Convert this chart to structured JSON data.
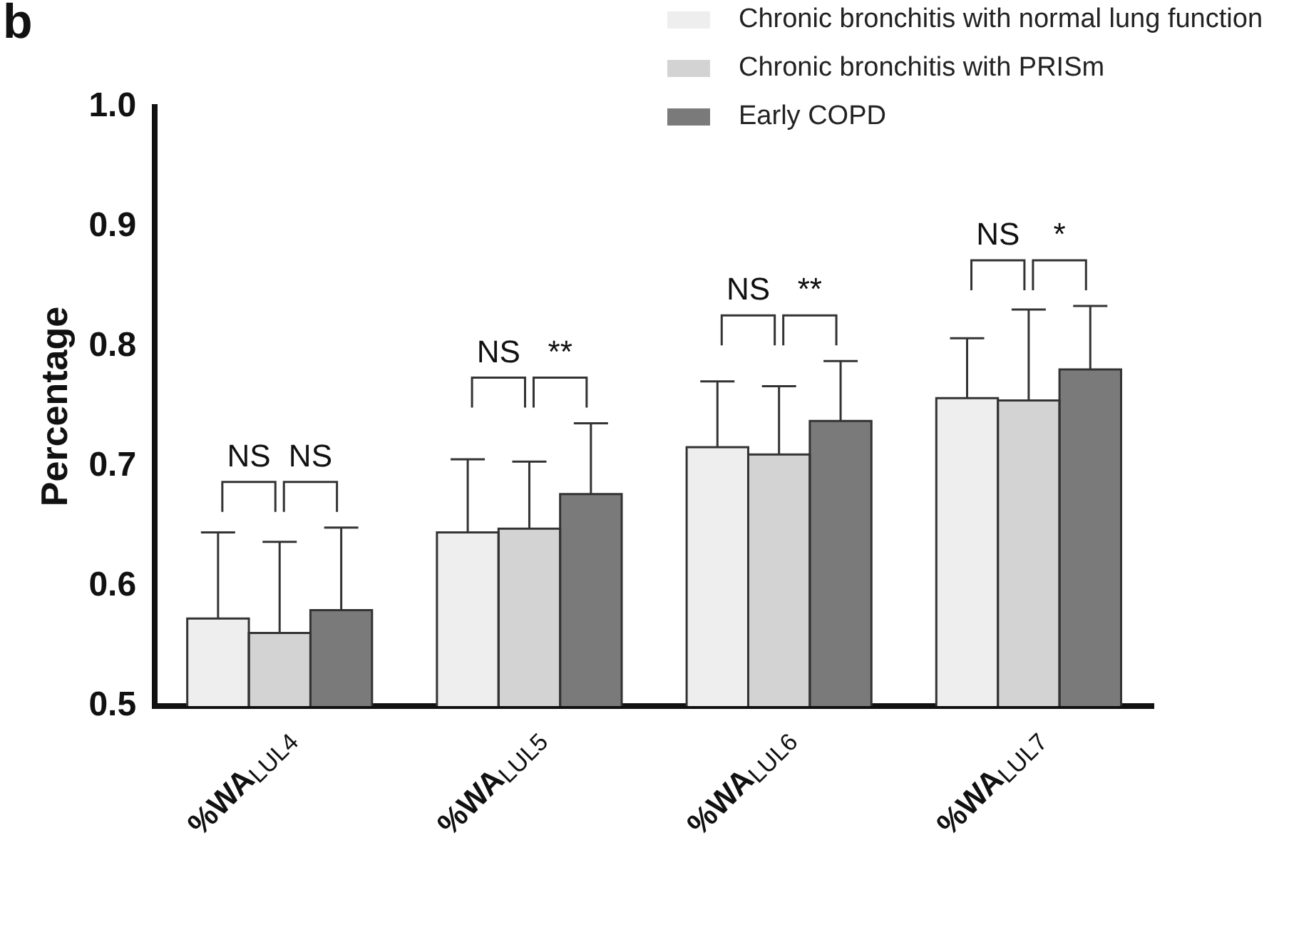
{
  "chart_data": {
    "type": "bar",
    "ylabel": "Percentage",
    "categories": [
      "%WA$_{LUL4}$",
      "%WA$_{LUL5}$",
      "%WA$_{LUL6}$",
      "%WA$_{LUL7}$"
    ],
    "series": [
      {
        "name": "Chronic bronchitis with normal lung function",
        "color": "#eeeeee",
        "values": [
          0.573,
          0.645,
          0.716,
          0.757
        ],
        "errors": [
          [
            0.573,
            0.645
          ],
          [
            0.645,
            0.706
          ],
          [
            0.716,
            0.771
          ],
          [
            0.757,
            0.807
          ]
        ]
      },
      {
        "name": "Chronic bronchitis with PRISm",
        "color": "#d3d3d3",
        "values": [
          0.561,
          0.648,
          0.71,
          0.755
        ],
        "errors": [
          [
            0.561,
            0.637
          ],
          [
            0.648,
            0.704
          ],
          [
            0.71,
            0.767
          ],
          [
            0.755,
            0.831
          ]
        ]
      },
      {
        "name": "Early COPD",
        "color": "#7a7a7a",
        "values": [
          0.58,
          0.677,
          0.738,
          0.781
        ],
        "errors": [
          [
            0.58,
            0.649
          ],
          [
            0.677,
            0.736
          ],
          [
            0.738,
            0.788
          ],
          [
            0.781,
            0.834
          ]
        ]
      }
    ],
    "ylim": [
      0.5,
      1.0
    ],
    "yticks": [
      0.5,
      0.6,
      0.7,
      0.8,
      0.9,
      {
        "value": 1,
        "label": "1.0"
      }
    ],
    "grid": false,
    "legend": "top right",
    "annotations": [
      "b",
      "NS",
      "NS",
      "NS",
      "**",
      "NS",
      "**",
      "NS",
      "*"
    ]
  }
}
